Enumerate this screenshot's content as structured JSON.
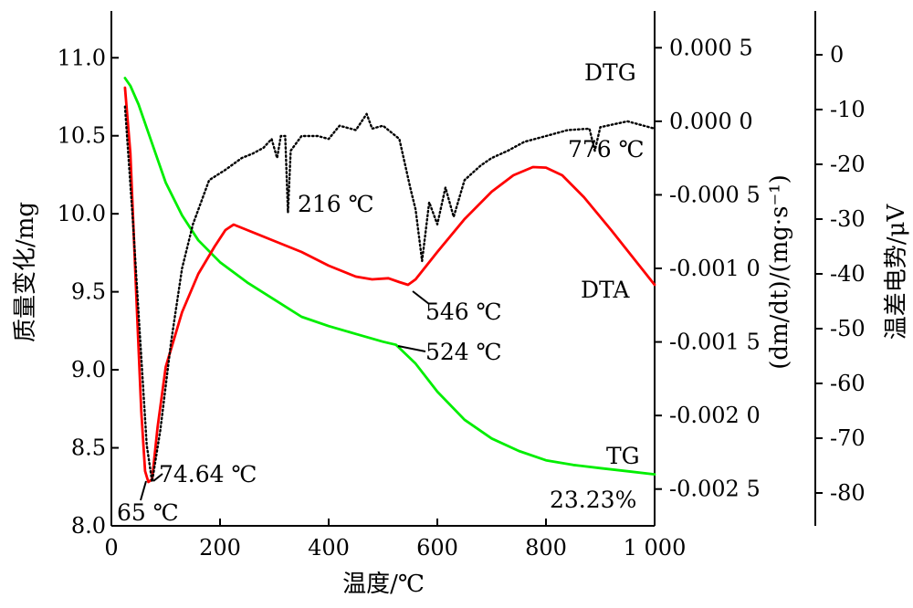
{
  "chart_data": {
    "type": "line",
    "title": "",
    "xlabel": "温度/℃",
    "xlim": [
      0,
      1000
    ],
    "xticks": [
      0,
      200,
      400,
      600,
      800,
      1000
    ],
    "xtick_labels": [
      "0",
      "200",
      "400",
      "600",
      "800",
      "1 000"
    ],
    "axes": {
      "mass": {
        "label": "质量变化/mg",
        "range": [
          8.0,
          11.3
        ],
        "ticks": [
          8.0,
          8.5,
          9.0,
          9.5,
          10.0,
          10.5,
          11.0
        ],
        "tick_labels": [
          "8.0",
          "8.5",
          "9.0",
          "9.5",
          "10.0",
          "10.5",
          "11.0"
        ]
      },
      "dtg": {
        "label": "(dm/dt)/(mg·s⁻¹)",
        "range": [
          -0.00275,
          0.00075
        ],
        "ticks": [
          0.0005,
          0.0,
          -0.0005,
          -0.001,
          -0.0015,
          -0.002,
          -0.0025
        ],
        "tick_labels": [
          "0.000 5",
          "0.000 0",
          "-0.000 5",
          "-0.001 0",
          "-0.001 5",
          "-0.002 0",
          "-0.002 5"
        ]
      },
      "dta": {
        "label": "温差电势/μV",
        "range": [
          -86,
          8
        ],
        "ticks": [
          0,
          -10,
          -20,
          -30,
          -40,
          -50,
          -60,
          -70,
          -80
        ],
        "tick_labels": [
          "0",
          "-10",
          "-20",
          "-30",
          "-40",
          "-50",
          "-60",
          "-70",
          "-80"
        ]
      }
    },
    "series": [
      {
        "name": "TG",
        "axis": "mass",
        "color": "#00ee00",
        "style": "solid",
        "points": [
          [
            25,
            10.87
          ],
          [
            35,
            10.82
          ],
          [
            50,
            10.7
          ],
          [
            65,
            10.55
          ],
          [
            80,
            10.4
          ],
          [
            100,
            10.2
          ],
          [
            130,
            9.99
          ],
          [
            160,
            9.83
          ],
          [
            200,
            9.69
          ],
          [
            250,
            9.56
          ],
          [
            300,
            9.45
          ],
          [
            350,
            9.34
          ],
          [
            400,
            9.28
          ],
          [
            450,
            9.23
          ],
          [
            500,
            9.18
          ],
          [
            524,
            9.16
          ],
          [
            560,
            9.04
          ],
          [
            600,
            8.86
          ],
          [
            650,
            8.68
          ],
          [
            700,
            8.56
          ],
          [
            750,
            8.48
          ],
          [
            800,
            8.42
          ],
          [
            850,
            8.39
          ],
          [
            900,
            8.37
          ],
          [
            950,
            8.35
          ],
          [
            1000,
            8.33
          ]
        ]
      },
      {
        "name": "DTA",
        "axis": "dta",
        "color": "#ff0000",
        "style": "solid",
        "points": [
          [
            25,
            -6
          ],
          [
            35,
            -18
          ],
          [
            45,
            -42
          ],
          [
            55,
            -65
          ],
          [
            62,
            -76
          ],
          [
            68,
            -78
          ],
          [
            75,
            -77.5
          ],
          [
            85,
            -68
          ],
          [
            100,
            -57
          ],
          [
            130,
            -47
          ],
          [
            160,
            -40
          ],
          [
            190,
            -35
          ],
          [
            210,
            -32
          ],
          [
            225,
            -31
          ],
          [
            250,
            -32
          ],
          [
            300,
            -34
          ],
          [
            350,
            -36
          ],
          [
            400,
            -38.5
          ],
          [
            450,
            -40.5
          ],
          [
            480,
            -41
          ],
          [
            510,
            -40.8
          ],
          [
            530,
            -41.5
          ],
          [
            546,
            -42
          ],
          [
            560,
            -41
          ],
          [
            600,
            -36
          ],
          [
            650,
            -30
          ],
          [
            700,
            -25
          ],
          [
            740,
            -22
          ],
          [
            776,
            -20.5
          ],
          [
            800,
            -20.6
          ],
          [
            830,
            -22
          ],
          [
            870,
            -26
          ],
          [
            920,
            -32
          ],
          [
            960,
            -37
          ],
          [
            1000,
            -42
          ]
        ]
      },
      {
        "name": "DTG",
        "axis": "dtg",
        "color": "#000000",
        "style": "dotted",
        "points": [
          [
            25,
            0.0001
          ],
          [
            40,
            -0.0007
          ],
          [
            55,
            -0.0016
          ],
          [
            65,
            -0.0022
          ],
          [
            75,
            -0.00245
          ],
          [
            90,
            -0.0021
          ],
          [
            110,
            -0.0015
          ],
          [
            130,
            -0.001
          ],
          [
            150,
            -0.0007
          ],
          [
            180,
            -0.0004
          ],
          [
            210,
            -0.00033
          ],
          [
            240,
            -0.00025
          ],
          [
            260,
            -0.00022
          ],
          [
            280,
            -0.00018
          ],
          [
            295,
            -0.00012
          ],
          [
            305,
            -0.00025
          ],
          [
            312,
            -0.0001
          ],
          [
            320,
            -0.0001
          ],
          [
            325,
            -0.00062
          ],
          [
            330,
            -0.0002
          ],
          [
            350,
            -0.0001
          ],
          [
            380,
            -0.0001
          ],
          [
            400,
            -0.00012
          ],
          [
            420,
            -3e-05
          ],
          [
            450,
            -6e-05
          ],
          [
            470,
            5e-05
          ],
          [
            480,
            -5e-05
          ],
          [
            500,
            -3e-05
          ],
          [
            530,
            -0.00012
          ],
          [
            550,
            -0.00045
          ],
          [
            560,
            -0.0006
          ],
          [
            572,
            -0.00095
          ],
          [
            585,
            -0.00055
          ],
          [
            600,
            -0.0007
          ],
          [
            615,
            -0.00045
          ],
          [
            630,
            -0.00065
          ],
          [
            650,
            -0.0004
          ],
          [
            680,
            -0.0003
          ],
          [
            700,
            -0.00025
          ],
          [
            730,
            -0.0002
          ],
          [
            760,
            -0.00014
          ],
          [
            800,
            -0.0001
          ],
          [
            840,
            -6e-05
          ],
          [
            880,
            -5e-05
          ],
          [
            890,
            -0.0002
          ],
          [
            900,
            -4e-05
          ],
          [
            950,
            0.0
          ],
          [
            1000,
            -5e-05
          ]
        ]
      }
    ],
    "annotations": [
      {
        "text": "DTG",
        "series": "DTG"
      },
      {
        "text": "216 ℃",
        "series": "DTG"
      },
      {
        "text": "776 ℃",
        "series": "DTA"
      },
      {
        "text": "DTA",
        "series": "DTA"
      },
      {
        "text": "546 ℃",
        "series": "DTA"
      },
      {
        "text": "524 ℃",
        "series": "TG"
      },
      {
        "text": "74.64 ℃",
        "series": "DTA"
      },
      {
        "text": "65 ℃",
        "series": "DTG"
      },
      {
        "text": "TG",
        "series": "TG"
      },
      {
        "text": "23.23%",
        "series": "TG"
      }
    ]
  }
}
